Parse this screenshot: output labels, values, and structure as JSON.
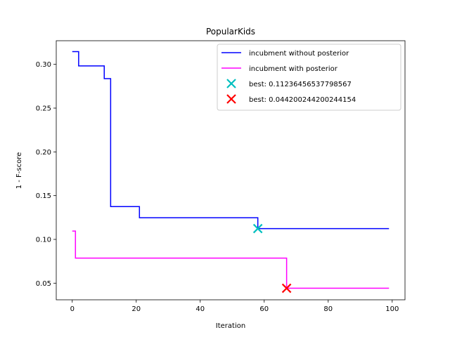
{
  "chart_data": {
    "type": "line",
    "title": "PopularKids",
    "xlabel": "Iteration",
    "ylabel": "1 - F-score",
    "xlim": [
      -5,
      104
    ],
    "ylim": [
      0.031,
      0.327
    ],
    "xticks": [
      0,
      20,
      40,
      60,
      80,
      100
    ],
    "xtick_labels": [
      "0",
      "20",
      "40",
      "60",
      "80",
      "100"
    ],
    "yticks": [
      0.05,
      0.1,
      0.15,
      0.2,
      0.25,
      0.3
    ],
    "ytick_labels": [
      "0.05",
      "0.10",
      "0.15",
      "0.20",
      "0.25",
      "0.30"
    ],
    "grid": false,
    "legend_position": "top-right",
    "series": [
      {
        "name": "incubment without posterior",
        "color": "#0000ff",
        "step": "post",
        "x": [
          0,
          1,
          2,
          9,
          10,
          11,
          12,
          20,
          21,
          57,
          58,
          99
        ],
        "y": [
          0.3146,
          0.3146,
          0.2982,
          0.2982,
          0.2837,
          0.2837,
          0.1375,
          0.1375,
          0.1248,
          0.1248,
          0.11236456537798567,
          0.11236456537798567
        ]
      },
      {
        "name": "incubment with posterior",
        "color": "#ff00ff",
        "step": "post",
        "x": [
          0,
          1,
          66,
          67,
          99
        ],
        "y": [
          0.1095,
          0.0786,
          0.0786,
          0.044200244200244154,
          0.044200244200244154
        ]
      }
    ],
    "markers": [
      {
        "label": "best: 0.11236456537798567",
        "x": 58,
        "y": 0.11236456537798567,
        "color": "#00bfbf",
        "shape": "x"
      },
      {
        "label": "best: 0.044200244200244154",
        "x": 67,
        "y": 0.044200244200244154,
        "color": "#ff0000",
        "shape": "x"
      }
    ]
  }
}
